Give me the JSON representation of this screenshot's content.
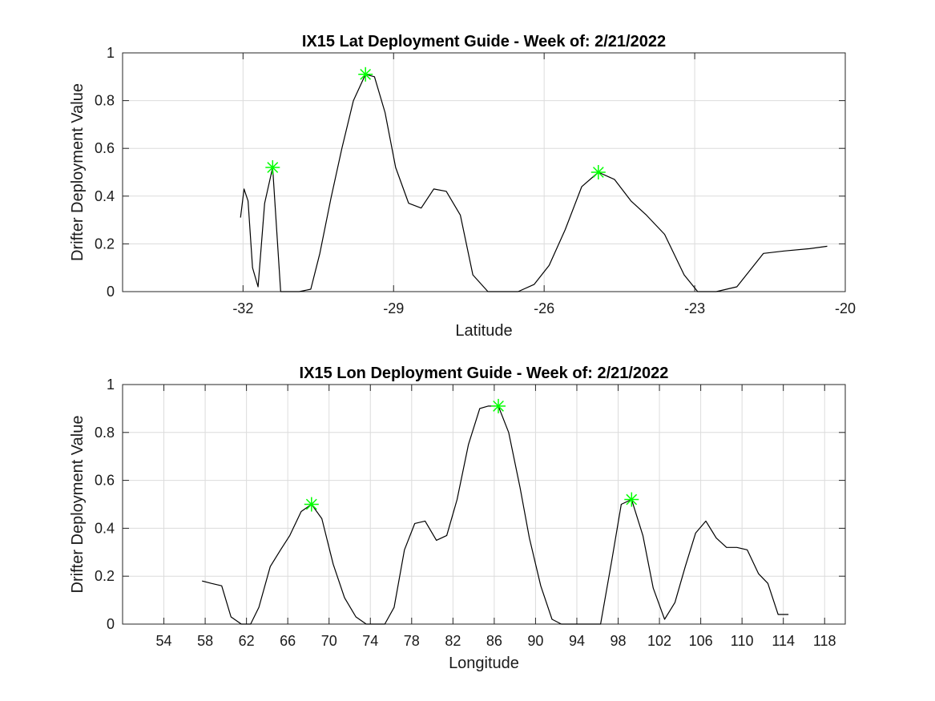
{
  "colors": {
    "line": "#000000",
    "peak_marker": "#00ff00",
    "grid": "#dcdcdc",
    "axes": "#262626"
  },
  "chart_data": [
    {
      "type": "line",
      "title": "IX15 Lat Deployment Guide - Week of: 2/21/2022",
      "xlabel": "Latitude",
      "ylabel": "Drifter Deployment Value",
      "xlim": [
        -34.4,
        -20
      ],
      "ylim": [
        0,
        1
      ],
      "xticks": [
        -32,
        -29,
        -26,
        -23,
        -20
      ],
      "yticks": [
        0,
        0.2,
        0.4,
        0.6,
        0.8,
        1
      ],
      "grid": true,
      "series": [
        {
          "x": [
            -32.05,
            -31.98,
            -31.9,
            -31.81,
            -31.7,
            -31.57,
            -31.41,
            -31.25,
            -30.88,
            -30.65,
            -30.47,
            -30.25,
            -30.03,
            -29.8,
            -29.56,
            -29.38,
            -29.17,
            -28.96,
            -28.7,
            -28.45,
            -28.2,
            -27.95,
            -27.67,
            -27.42,
            -27.12,
            -26.82,
            -26.52,
            -26.2,
            -25.9,
            -25.58,
            -25.25,
            -24.92,
            -24.6,
            -24.27,
            -23.96,
            -23.6,
            -23.21,
            -22.94,
            -22.57,
            -22.16,
            -21.63,
            -21.22,
            -20.71,
            -20.36
          ],
          "y": [
            0.31,
            0.43,
            0.38,
            0.1,
            0.02,
            0.37,
            0.52,
            0.0,
            0.0,
            0.01,
            0.16,
            0.39,
            0.6,
            0.8,
            0.91,
            0.9,
            0.75,
            0.52,
            0.37,
            0.35,
            0.43,
            0.42,
            0.32,
            0.07,
            0.0,
            0.0,
            0.0,
            0.03,
            0.11,
            0.26,
            0.44,
            0.5,
            0.47,
            0.38,
            0.32,
            0.24,
            0.07,
            0.0,
            0.0,
            0.02,
            0.16,
            0.17,
            0.18,
            0.19
          ]
        }
      ],
      "peaks": [
        {
          "x": -31.41,
          "y": 0.52
        },
        {
          "x": -29.56,
          "y": 0.91
        },
        {
          "x": -24.92,
          "y": 0.5
        }
      ]
    },
    {
      "type": "line",
      "title": "IX15 Lon Deployment Guide - Week of: 2/21/2022",
      "xlabel": "Longitude",
      "ylabel": "Drifter Deployment Value",
      "xlim": [
        50,
        120
      ],
      "ylim": [
        0,
        1
      ],
      "xticks": [
        54,
        58,
        62,
        66,
        70,
        74,
        78,
        82,
        86,
        90,
        94,
        98,
        102,
        106,
        110,
        114,
        118
      ],
      "yticks": [
        0,
        0.2,
        0.4,
        0.6,
        0.8,
        1
      ],
      "grid": true,
      "series": [
        {
          "x": [
            57.7,
            58.6,
            59.6,
            60.5,
            61.5,
            62.4,
            63.2,
            64.3,
            65.3,
            66.2,
            67.3,
            68.3,
            69.3,
            70.4,
            71.5,
            72.6,
            73.6,
            74.5,
            75.4,
            76.3,
            77.3,
            78.3,
            79.3,
            80.4,
            81.4,
            82.4,
            83.5,
            84.6,
            85.4,
            86.4,
            87.4,
            88.5,
            89.4,
            90.5,
            91.6,
            92.5,
            93.5,
            94.5,
            95.4,
            96.3,
            97.4,
            98.3,
            99.3,
            100.4,
            101.4,
            102.5,
            103.5,
            104.5,
            105.5,
            106.5,
            107.5,
            108.5,
            109.5,
            110.5,
            111.6,
            112.5,
            113.5,
            114.5
          ],
          "y": [
            0.18,
            0.17,
            0.16,
            0.03,
            0.0,
            0.0,
            0.07,
            0.24,
            0.31,
            0.37,
            0.47,
            0.5,
            0.44,
            0.25,
            0.11,
            0.03,
            0.0,
            0.0,
            0.0,
            0.07,
            0.31,
            0.42,
            0.43,
            0.35,
            0.37,
            0.52,
            0.75,
            0.9,
            0.91,
            0.91,
            0.8,
            0.57,
            0.36,
            0.16,
            0.02,
            0.0,
            0.0,
            0.0,
            0.0,
            0.0,
            0.27,
            0.5,
            0.52,
            0.37,
            0.15,
            0.02,
            0.09,
            0.24,
            0.38,
            0.43,
            0.36,
            0.32,
            0.32,
            0.31,
            0.21,
            0.17,
            0.04,
            0.04
          ]
        }
      ],
      "peaks": [
        {
          "x": 68.3,
          "y": 0.5
        },
        {
          "x": 86.4,
          "y": 0.91
        },
        {
          "x": 99.3,
          "y": 0.52
        }
      ]
    }
  ]
}
